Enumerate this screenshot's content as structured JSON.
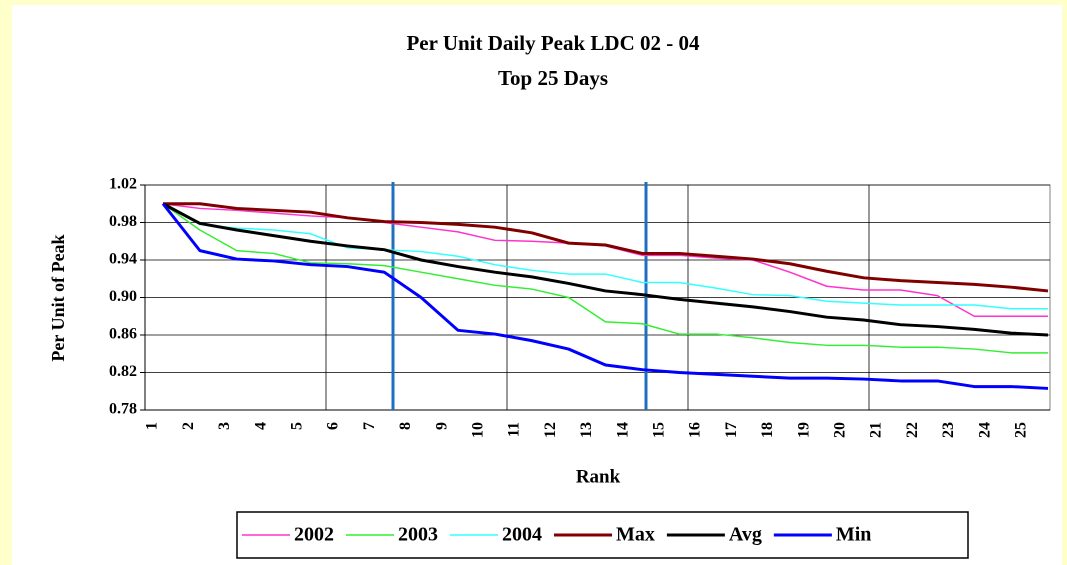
{
  "chart_data": {
    "type": "line",
    "title": "Per Unit Daily Peak LDC 02 - 04",
    "subtitle": "Top 25 Days",
    "x_label": "Rank",
    "y_label": "Per Unit of Peak",
    "categories": [
      "1",
      "2",
      "3",
      "4",
      "5",
      "6",
      "7",
      "8",
      "9",
      "10",
      "11",
      "12",
      "13",
      "14",
      "15",
      "16",
      "17",
      "18",
      "19",
      "20",
      "21",
      "22",
      "23",
      "24",
      "25"
    ],
    "series": [
      {
        "name": "2002",
        "color": "#ff33cc",
        "values": [
          1.0,
          0.995,
          0.993,
          0.99,
          0.987,
          0.985,
          0.98,
          0.975,
          0.97,
          0.961,
          0.96,
          0.958,
          0.955,
          0.945,
          0.945,
          0.942,
          0.94,
          0.927,
          0.912,
          0.908,
          0.908,
          0.902,
          0.88,
          0.88,
          0.88
        ]
      },
      {
        "name": "2003",
        "color": "#33ee33",
        "values": [
          1.0,
          0.972,
          0.95,
          0.947,
          0.937,
          0.936,
          0.934,
          0.927,
          0.92,
          0.913,
          0.909,
          0.9,
          0.874,
          0.872,
          0.861,
          0.861,
          0.857,
          0.852,
          0.849,
          0.849,
          0.847,
          0.847,
          0.845,
          0.841,
          0.841
        ]
      },
      {
        "name": "2004",
        "color": "#33ffff",
        "values": [
          1.0,
          0.978,
          0.974,
          0.972,
          0.968,
          0.953,
          0.951,
          0.949,
          0.944,
          0.935,
          0.929,
          0.925,
          0.925,
          0.916,
          0.916,
          0.91,
          0.903,
          0.902,
          0.896,
          0.894,
          0.892,
          0.892,
          0.892,
          0.888,
          0.888
        ]
      },
      {
        "name": "Max",
        "color": "#800000",
        "values": [
          1.0,
          1.0,
          0.995,
          0.993,
          0.991,
          0.985,
          0.981,
          0.98,
          0.978,
          0.975,
          0.969,
          0.958,
          0.956,
          0.947,
          0.947,
          0.944,
          0.941,
          0.936,
          0.928,
          0.921,
          0.918,
          0.916,
          0.914,
          0.911,
          0.907
        ]
      },
      {
        "name": "Avg",
        "color": "#000000",
        "values": [
          1.0,
          0.979,
          0.972,
          0.966,
          0.96,
          0.955,
          0.951,
          0.94,
          0.933,
          0.927,
          0.922,
          0.915,
          0.907,
          0.903,
          0.898,
          0.894,
          0.89,
          0.885,
          0.879,
          0.876,
          0.871,
          0.869,
          0.866,
          0.862,
          0.86
        ]
      },
      {
        "name": "Min",
        "color": "#0000ff",
        "values": [
          1.0,
          0.95,
          0.941,
          0.939,
          0.935,
          0.933,
          0.927,
          0.9,
          0.865,
          0.861,
          0.854,
          0.845,
          0.828,
          0.823,
          0.82,
          0.818,
          0.816,
          0.814,
          0.814,
          0.813,
          0.811,
          0.811,
          0.805,
          0.805,
          0.803
        ]
      }
    ],
    "ylim": [
      0.78,
      1.02
    ],
    "yticks": [
      0.78,
      0.82,
      0.86,
      {
        "value": 0.9,
        "label": "0.90"
      },
      0.94,
      0.98,
      1.02
    ],
    "grid": true,
    "legend": "bottom"
  }
}
